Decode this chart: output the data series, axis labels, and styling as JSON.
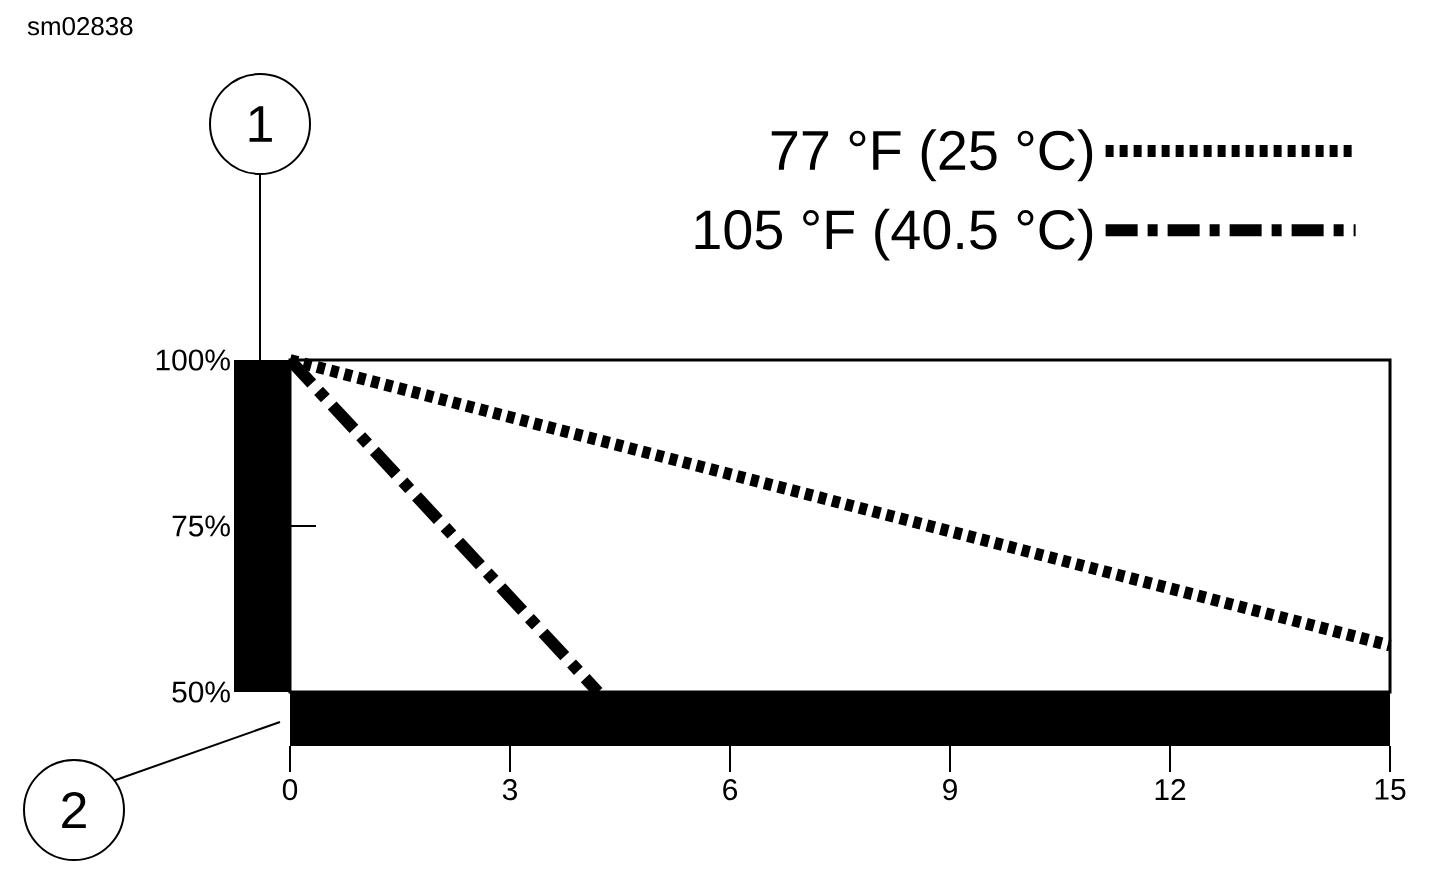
{
  "chart_data": {
    "type": "line",
    "series": [
      {
        "name": "77 °F (25 °C)",
        "color": "#000000",
        "line_style": "dotted",
        "x": [
          0,
          15
        ],
        "values": [
          100,
          57
        ]
      },
      {
        "name": "105 °F (40.5 °C)",
        "color": "#000000",
        "line_style": "dashdot",
        "x": [
          0,
          4.2
        ],
        "values": [
          100,
          50
        ]
      }
    ],
    "xlim": [
      0,
      15
    ],
    "xticks": [
      0,
      3,
      6,
      9,
      12,
      15
    ],
    "ylim": [
      50,
      100
    ],
    "yticks": [
      {
        "value": 50,
        "label": "50%"
      },
      {
        "value": 75,
        "label": "75%"
      },
      {
        "value": 100,
        "label": "100%"
      }
    ],
    "legend": "top right",
    "grid": false,
    "marker": "none",
    "annotations": [
      "sm02838",
      "1",
      "2"
    ]
  }
}
